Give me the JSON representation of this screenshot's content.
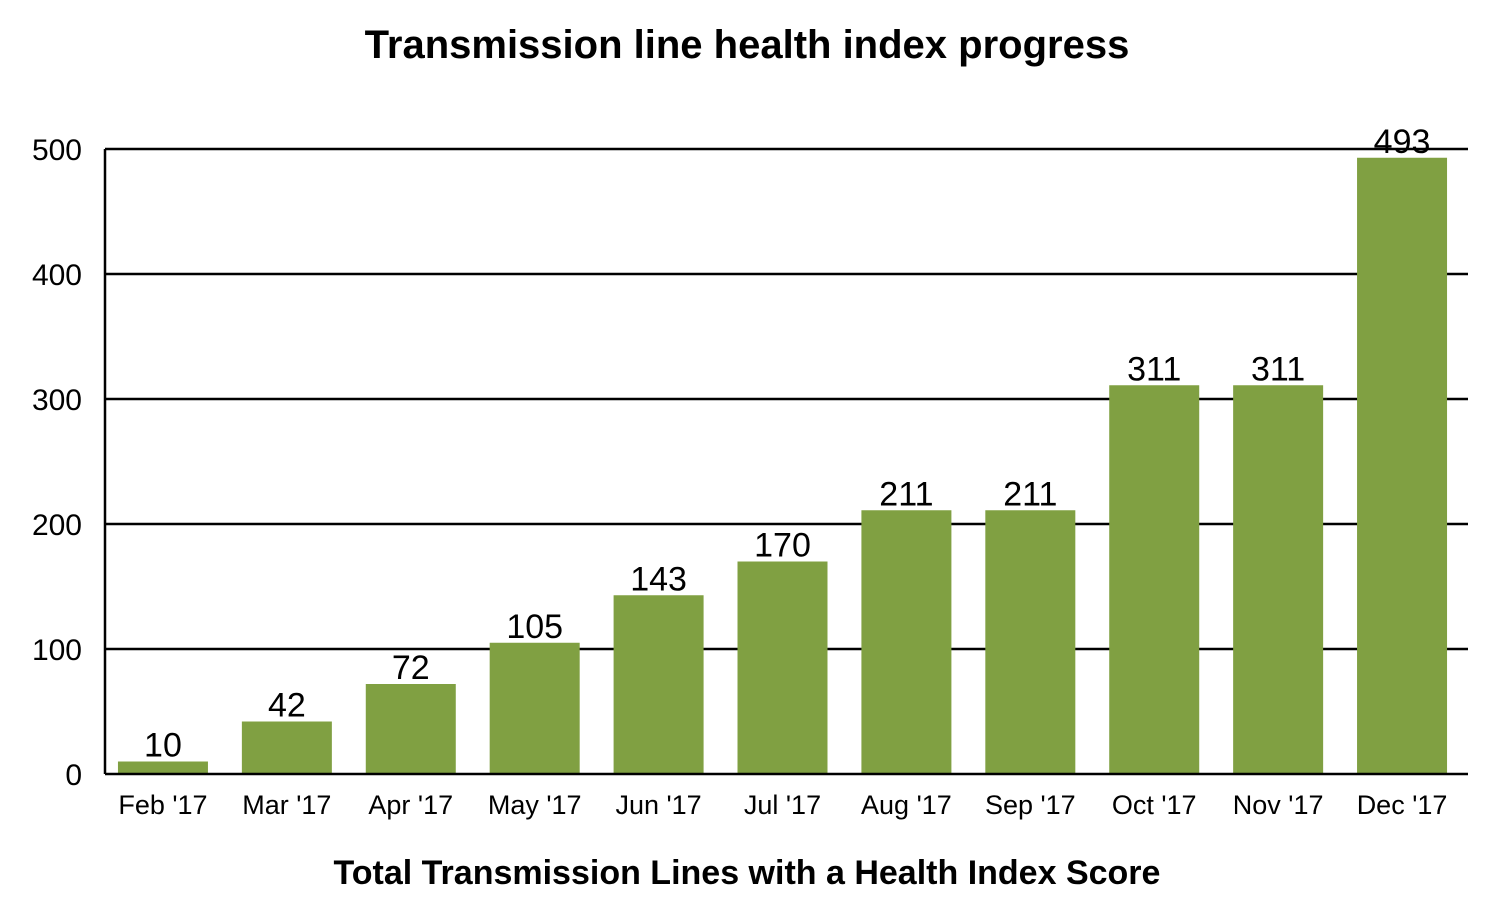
{
  "chart_data": {
    "type": "bar",
    "title": "Transmission line health index progress",
    "xlabel": "Total Transmission Lines with a Health Index Score",
    "ylabel": "",
    "categories": [
      "Feb '17",
      "Mar '17",
      "Apr '17",
      "May '17",
      "Jun '17",
      "Jul '17",
      "Aug '17",
      "Sep '17",
      "Oct '17",
      "Nov '17",
      "Dec '17"
    ],
    "values": [
      10,
      42,
      72,
      105,
      143,
      170,
      211,
      211,
      311,
      311,
      493
    ],
    "ylim": [
      0,
      500
    ],
    "yticks": [
      0,
      100,
      200,
      300,
      400,
      500
    ],
    "grid": true,
    "data_labels": true,
    "bar_color": "#80a042",
    "grid_color": "#000000",
    "text_color": "#000000"
  }
}
